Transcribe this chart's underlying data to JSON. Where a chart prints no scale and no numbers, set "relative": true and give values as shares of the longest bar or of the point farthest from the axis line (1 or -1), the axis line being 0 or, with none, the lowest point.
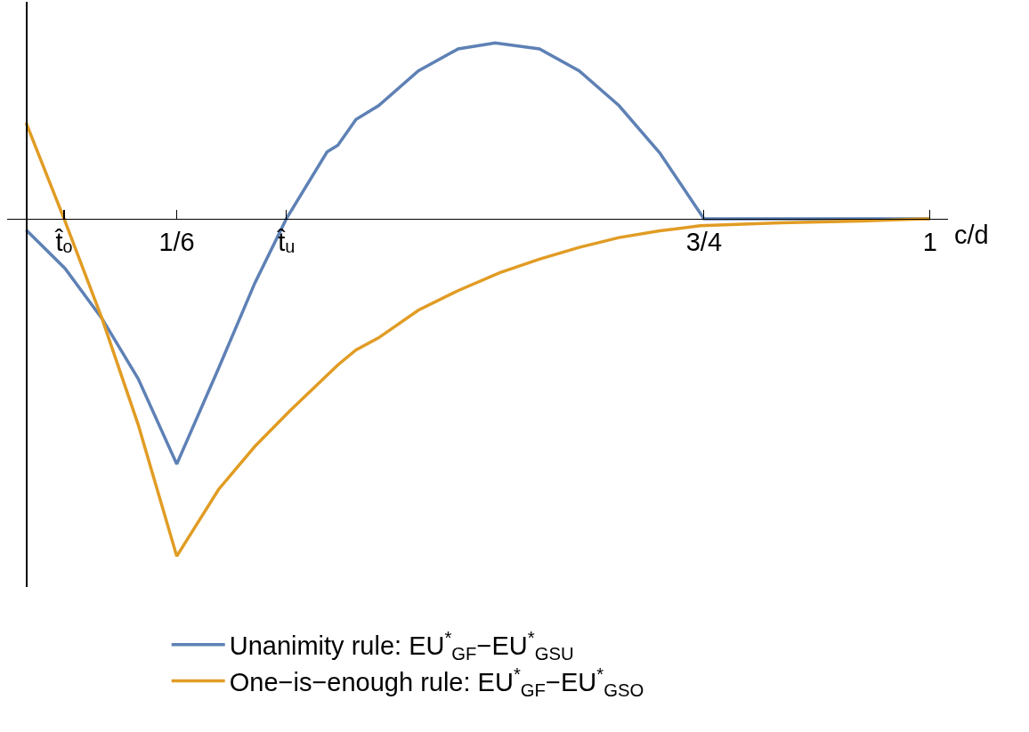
{
  "chart_data": {
    "type": "line",
    "relative": true,
    "xlabel": "c/d",
    "xlim": [
      -0.021,
      1.02
    ],
    "xticks": [
      {
        "value": 0.042,
        "label": "t̂ₒ"
      },
      {
        "value": 0.1667,
        "label": "1/6"
      },
      {
        "value": 0.288,
        "label": "t̂ᵤ"
      },
      {
        "value": 0.75,
        "label": "3/4"
      },
      1
    ],
    "tick_labels": "x",
    "legend": "bottom",
    "series": [
      {
        "name": "Unanimity rule: EU$^{*}$$_{GF}$−EU$^{*}$$_{GSU}$",
        "color": "#5e81b5",
        "x": [
          0,
          0.043,
          0.084,
          0.124,
          0.1667,
          0.213,
          0.253,
          0.288,
          0.333,
          0.345,
          0.365,
          0.39,
          0.434,
          0.478,
          0.519,
          0.568,
          0.612,
          0.656,
          0.701,
          0.75,
          1
        ],
        "values": [
          -0.033,
          -0.147,
          -0.296,
          -0.474,
          -0.727,
          -0.443,
          -0.191,
          0,
          0.198,
          0.218,
          0.294,
          0.335,
          0.438,
          0.503,
          0.521,
          0.503,
          0.438,
          0.335,
          0.195,
          0,
          0
        ]
      },
      {
        "name": "One−is−enough rule: EU$^{*}$$_{GF}$−EU$^{*}$$_{GSO}$",
        "color": "#e19c24",
        "x": [
          0,
          0.042,
          0.084,
          0.124,
          0.1667,
          0.213,
          0.253,
          0.292,
          0.345,
          0.365,
          0.39,
          0.434,
          0.478,
          0.524,
          0.568,
          0.612,
          0.656,
          0.701,
          0.746,
          0.835,
          0.923,
          1
        ],
        "values": [
          0.284,
          0,
          -0.296,
          -0.61,
          -1,
          -0.802,
          -0.675,
          -0.569,
          -0.433,
          -0.389,
          -0.353,
          -0.271,
          -0.213,
          -0.16,
          -0.12,
          -0.085,
          -0.056,
          -0.036,
          -0.021,
          -0.012,
          -0.007,
          0
        ]
      }
    ]
  }
}
